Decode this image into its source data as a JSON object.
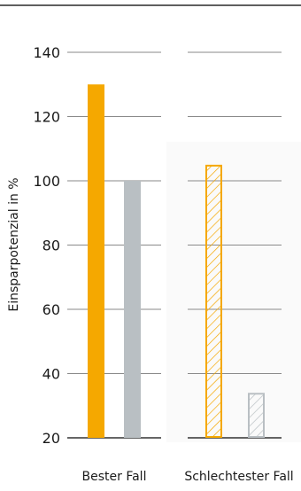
{
  "chart_data": {
    "type": "bar",
    "title": "",
    "xlabel": "",
    "ylabel": "Einsparpotenzial in %",
    "ylim": [
      20,
      140
    ],
    "yticks": [
      20,
      40,
      60,
      80,
      100,
      120,
      140
    ],
    "grid": true,
    "legend": "none",
    "categories": [
      "Bester Fall",
      "Schlechtester Fall"
    ],
    "series": [
      {
        "values": [
          130,
          105
        ],
        "color": "#f5a800"
      },
      {
        "values": [
          100,
          34
        ],
        "color": "#b9bfc3"
      }
    ],
    "bar_styles": [
      [
        "solid",
        "solid"
      ],
      [
        "hatched-outline",
        "hatched-outline"
      ]
    ]
  }
}
